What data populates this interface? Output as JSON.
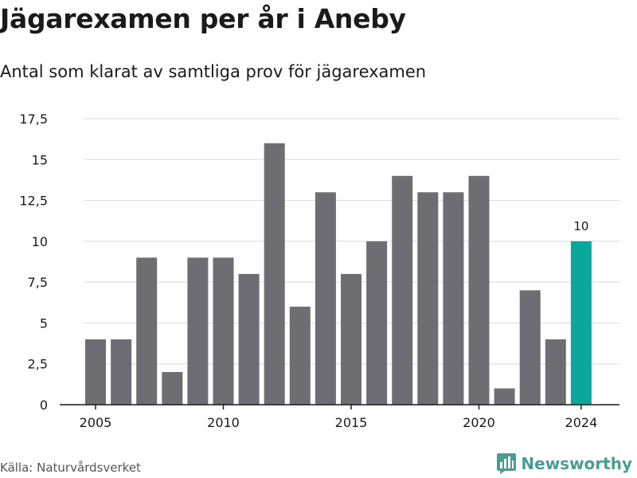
{
  "header": {
    "title": "Jägarexamen per år i Aneby",
    "subtitle": "Antal som klarat av samtliga prov för jägarexamen"
  },
  "footer": {
    "source": "Källa: Naturvårdsverket",
    "brand": "Newsworthy"
  },
  "colors": {
    "bar": "#6e6d73",
    "highlight": "#0aa89b",
    "grid": "#d9d9d9",
    "brand": "#4a9d8f"
  },
  "chart_data": {
    "type": "bar",
    "categories": [
      "2005",
      "2006",
      "2007",
      "2008",
      "2009",
      "2010",
      "2011",
      "2012",
      "2013",
      "2014",
      "2015",
      "2016",
      "2017",
      "2018",
      "2019",
      "2020",
      "2021",
      "2022",
      "2023",
      "2024"
    ],
    "values": [
      4,
      4,
      9,
      2,
      9,
      9,
      8,
      16,
      6,
      13,
      8,
      10,
      14,
      13,
      13,
      14,
      1,
      7,
      4,
      10
    ],
    "highlight_index": 19,
    "data_labels": [
      {
        "index": 19,
        "text": "10"
      }
    ],
    "ylim": [
      0,
      17.5
    ],
    "yticks": [
      0,
      2.5,
      5,
      7.5,
      10,
      12.5,
      15,
      17.5
    ],
    "ytick_labels": [
      "0",
      "2,5",
      "5",
      "7,5",
      "10",
      "12,5",
      "15",
      "17,5"
    ],
    "xticks": [
      "2005",
      "2010",
      "2015",
      "2020",
      "2024"
    ],
    "xlabel": "",
    "ylabel": "",
    "grid": true,
    "legend": "none"
  }
}
